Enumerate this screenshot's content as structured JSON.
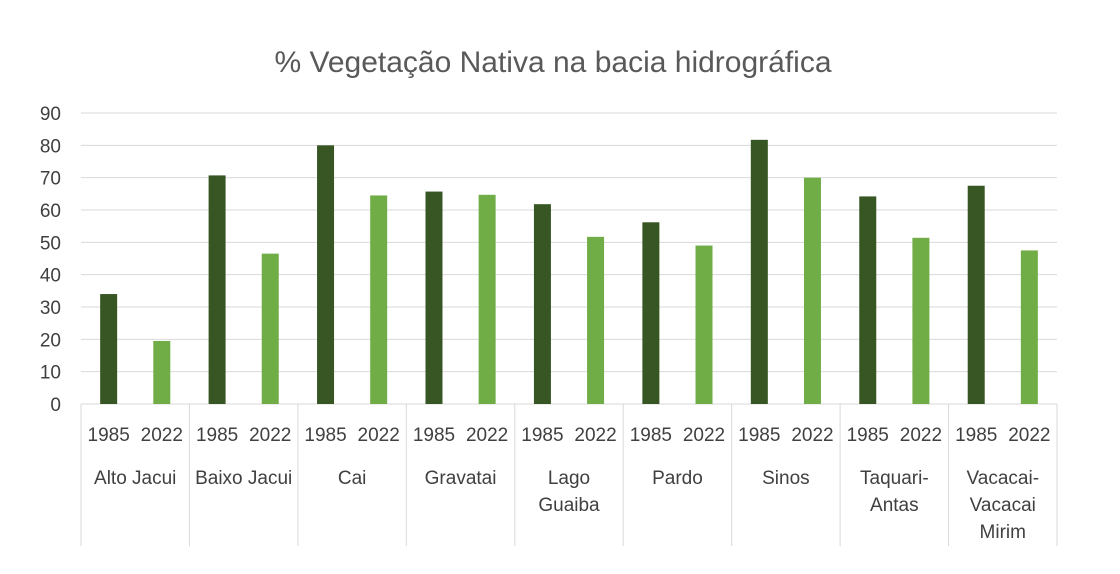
{
  "chart_data": {
    "type": "bar",
    "title": "% Vegetação Nativa na bacia hidrográfica",
    "ylim": [
      0,
      90
    ],
    "yticks": [
      0,
      10,
      20,
      30,
      40,
      50,
      60,
      70,
      80,
      90
    ],
    "grid": true,
    "colors": {
      "1985": "#375623",
      "2022": "#70ad47"
    },
    "groups": [
      {
        "lines": [
          "Alto Jacui"
        ],
        "bars": [
          {
            "label": "1985",
            "value": 34
          },
          {
            "label": "2022",
            "value": 19.5
          }
        ]
      },
      {
        "lines": [
          "Baixo Jacui"
        ],
        "bars": [
          {
            "label": "1985",
            "value": 70.7
          },
          {
            "label": "2022",
            "value": 46.5
          }
        ]
      },
      {
        "lines": [
          "Cai"
        ],
        "bars": [
          {
            "label": "1985",
            "value": 80
          },
          {
            "label": "2022",
            "value": 64.5
          }
        ]
      },
      {
        "lines": [
          "Gravatai"
        ],
        "bars": [
          {
            "label": "1985",
            "value": 65.7
          },
          {
            "label": "2022",
            "value": 64.7
          }
        ]
      },
      {
        "lines": [
          "Lago",
          "Guaiba"
        ],
        "bars": [
          {
            "label": "1985",
            "value": 61.8
          },
          {
            "label": "2022",
            "value": 51.7
          }
        ]
      },
      {
        "lines": [
          "Pardo"
        ],
        "bars": [
          {
            "label": "1985",
            "value": 56.2
          },
          {
            "label": "2022",
            "value": 49
          }
        ]
      },
      {
        "lines": [
          "Sinos"
        ],
        "bars": [
          {
            "label": "1985",
            "value": 81.7
          },
          {
            "label": "2022",
            "value": 70
          }
        ]
      },
      {
        "lines": [
          "Taquari-",
          "Antas"
        ],
        "bars": [
          {
            "label": "1985",
            "value": 64.2
          },
          {
            "label": "2022",
            "value": 51.4
          }
        ]
      },
      {
        "lines": [
          "Vacacai-",
          "Vacacai",
          "Mirim"
        ],
        "bars": [
          {
            "label": "1985",
            "value": 67.5
          },
          {
            "label": "2022",
            "value": 47.5
          }
        ]
      }
    ]
  }
}
